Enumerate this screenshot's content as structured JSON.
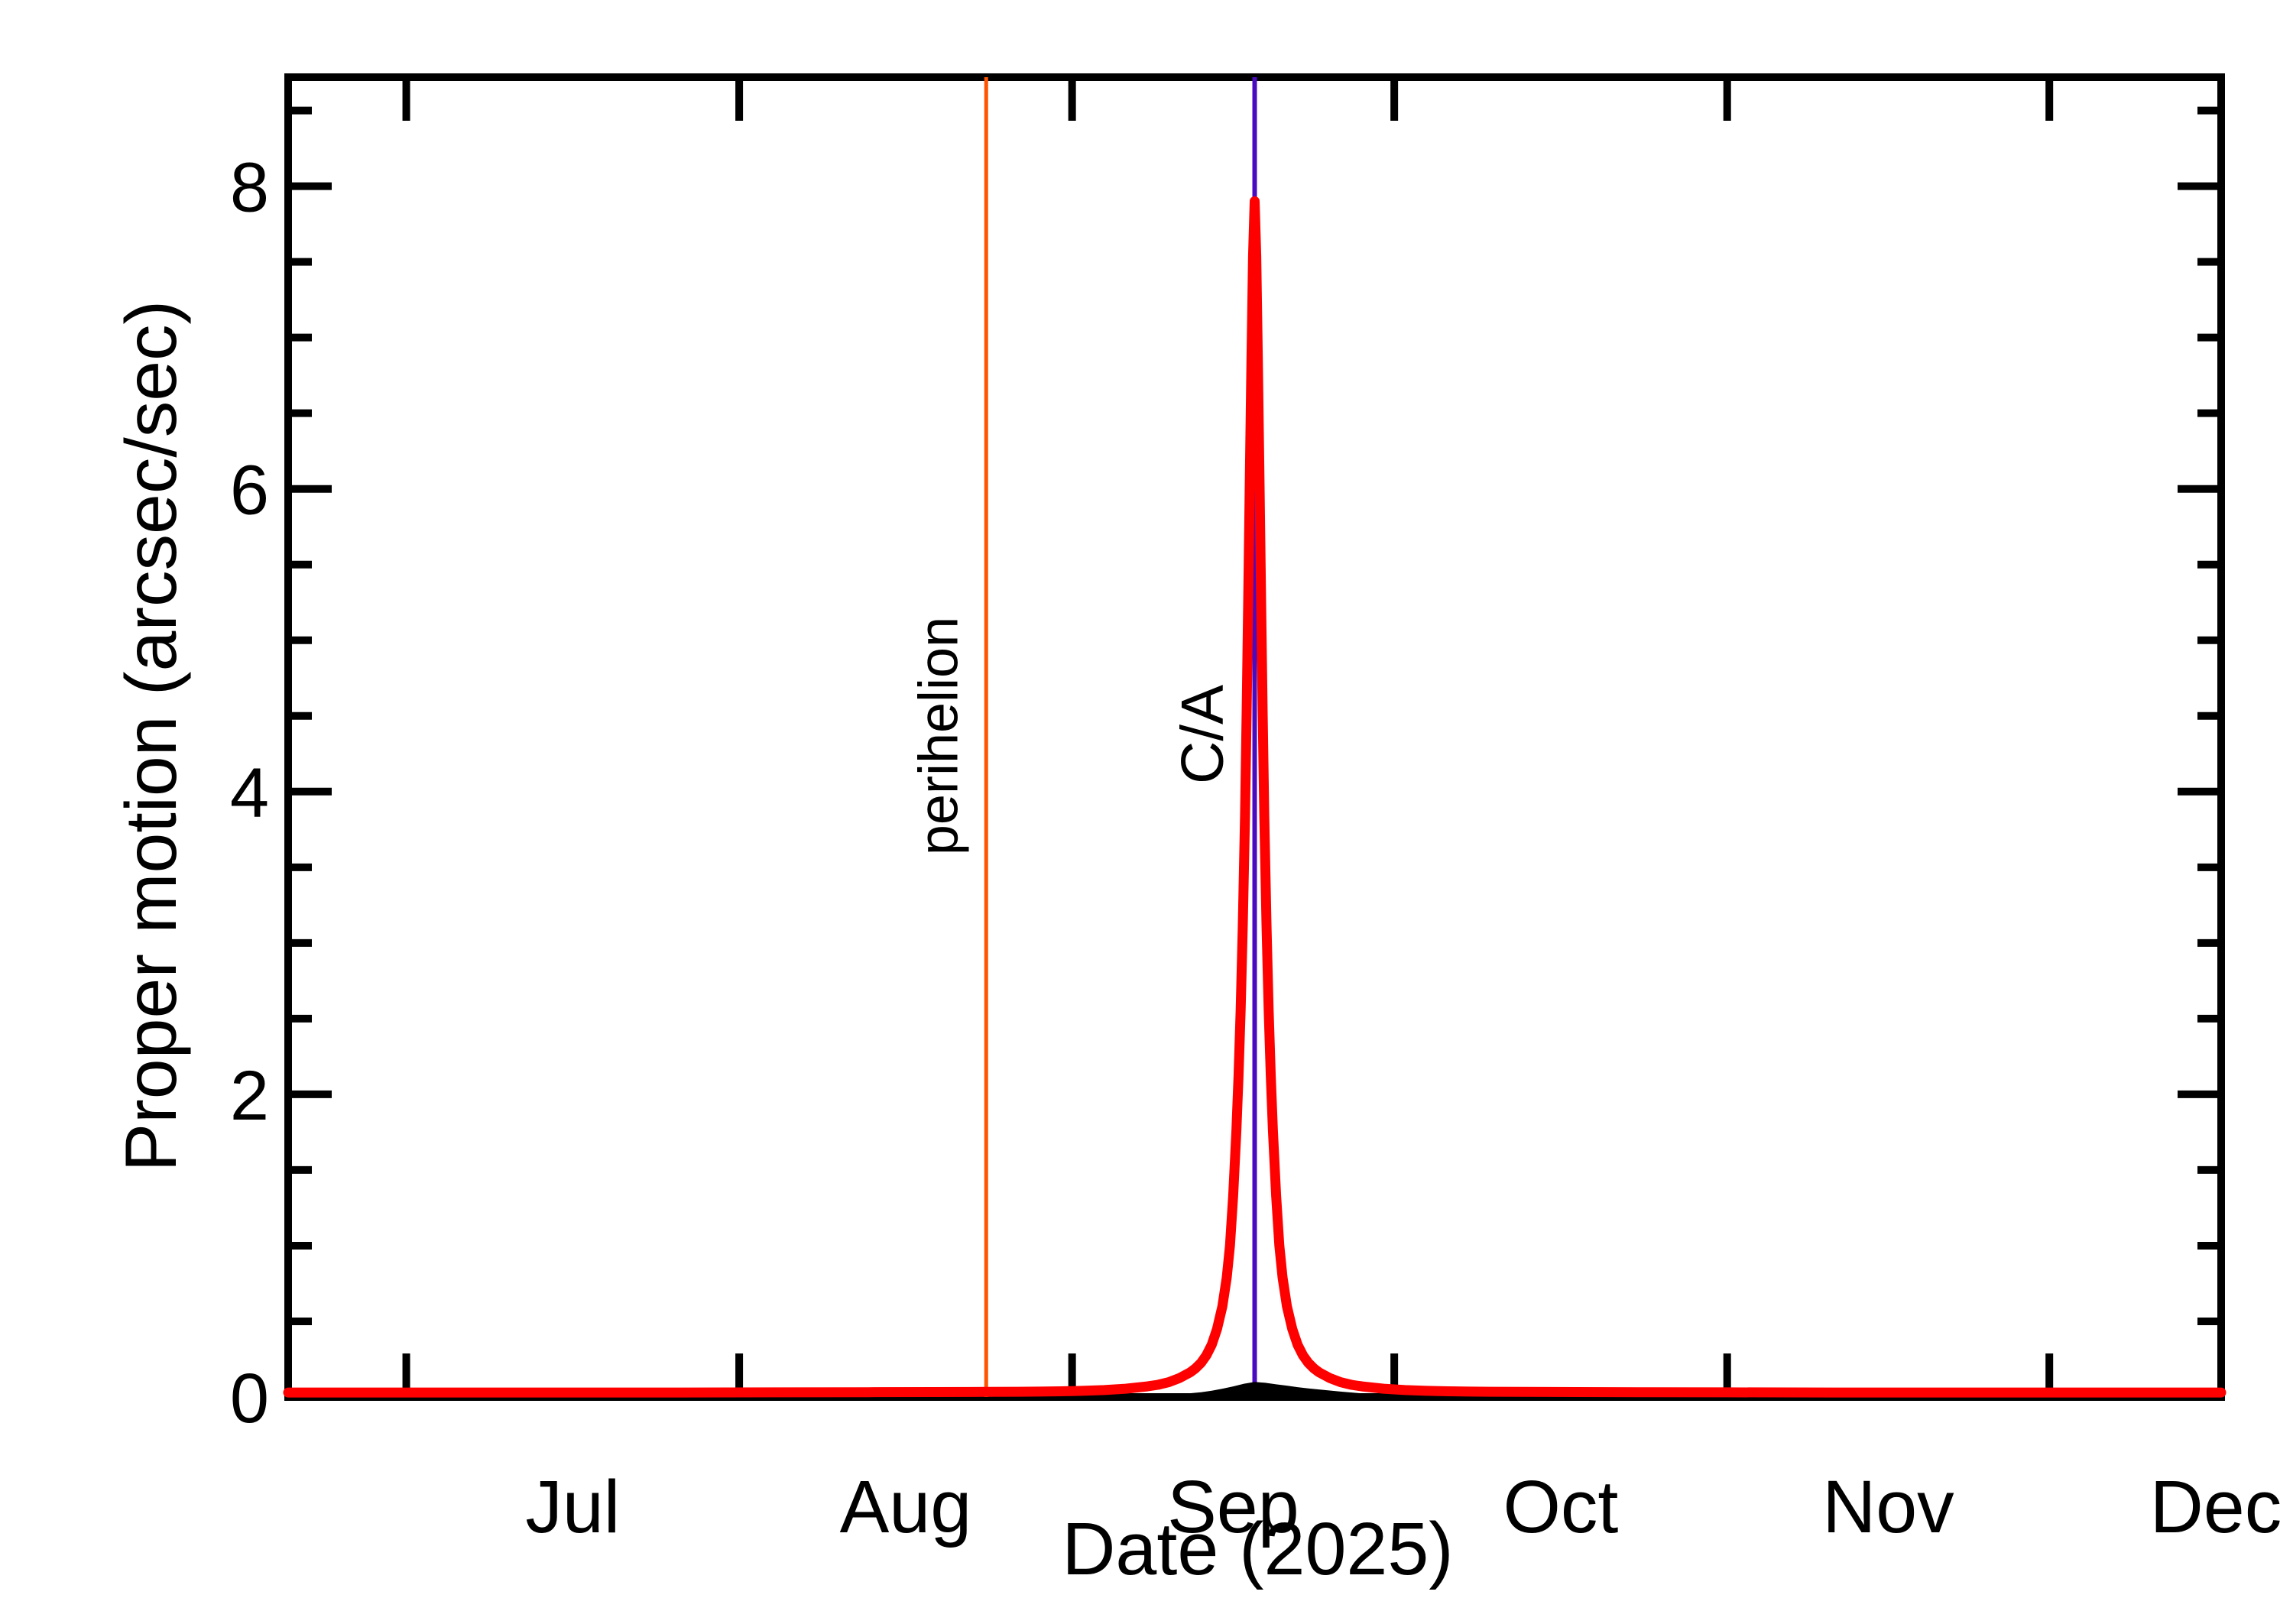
{
  "page": {
    "background": "#ffffff",
    "frame_color": "#000000"
  },
  "chart_data": {
    "type": "line",
    "title": "",
    "xlabel": "Date (2025)",
    "ylabel": "Proper motion (arcsec/sec)",
    "x_unit": "days from left edge of plot (left edge ≈ Jun 20, 2025; right edge ≈ Dec 16, 2025)",
    "x_range_days": [
      0,
      180
    ],
    "ylim": [
      0,
      8.72
    ],
    "y_tick_values": [
      0,
      2,
      4,
      6,
      8
    ],
    "y_tick_labels": [
      "0",
      "2",
      "4",
      "6",
      "8"
    ],
    "y_minor_step": 0.5,
    "grid": "off",
    "legend": "none",
    "months": [
      {
        "label": "Jul",
        "tick_day": 11,
        "label_day": 26.5
      },
      {
        "label": "Aug",
        "tick_day": 42,
        "label_day": 57.5
      },
      {
        "label": "Sep",
        "tick_day": 73,
        "label_day": 88
      },
      {
        "label": "Oct",
        "tick_day": 103,
        "label_day": 118.5
      },
      {
        "label": "Nov",
        "tick_day": 134,
        "label_day": 149
      },
      {
        "label": "Dec",
        "tick_day": 164,
        "label_day": 179.5
      }
    ],
    "events": [
      {
        "name": "perihelion",
        "label": "perihelion",
        "color": "#ff5500",
        "day": 65
      },
      {
        "name": "close-approach",
        "label": "C/A",
        "color": "#4a0ac0",
        "day": 90
      }
    ],
    "peak": {
      "day": 90,
      "value": 7.9
    },
    "series": [
      {
        "name": "proper-motion",
        "color": "#ff0000",
        "style": "line",
        "points": [
          [
            0,
            0.03
          ],
          [
            12,
            0.03
          ],
          [
            24,
            0.03
          ],
          [
            36,
            0.03
          ],
          [
            46,
            0.031
          ],
          [
            54,
            0.032
          ],
          [
            60,
            0.033
          ],
          [
            65,
            0.034
          ],
          [
            68,
            0.035
          ],
          [
            70,
            0.036
          ],
          [
            72,
            0.038
          ],
          [
            74,
            0.041
          ],
          [
            76,
            0.046
          ],
          [
            78,
            0.055
          ],
          [
            80,
            0.07
          ],
          [
            81,
            0.081
          ],
          [
            82,
            0.098
          ],
          [
            83,
            0.125
          ],
          [
            84,
            0.163
          ],
          [
            84.5,
            0.19
          ],
          [
            85,
            0.225
          ],
          [
            85.5,
            0.275
          ],
          [
            86,
            0.345
          ],
          [
            86.5,
            0.45
          ],
          [
            87,
            0.6
          ],
          [
            87.4,
            0.79
          ],
          [
            87.7,
            1.0
          ],
          [
            88,
            1.33
          ],
          [
            88.3,
            1.76
          ],
          [
            88.5,
            2.12
          ],
          [
            88.7,
            2.56
          ],
          [
            88.9,
            3.12
          ],
          [
            89.1,
            3.84
          ],
          [
            89.25,
            4.52
          ],
          [
            89.4,
            5.28
          ],
          [
            89.55,
            6.08
          ],
          [
            89.7,
            6.85
          ],
          [
            89.85,
            7.54
          ],
          [
            90,
            7.9
          ],
          [
            90.15,
            7.54
          ],
          [
            90.3,
            6.85
          ],
          [
            90.45,
            6.08
          ],
          [
            90.6,
            5.28
          ],
          [
            90.75,
            4.52
          ],
          [
            90.9,
            3.84
          ],
          [
            91.1,
            3.12
          ],
          [
            91.3,
            2.56
          ],
          [
            91.5,
            2.12
          ],
          [
            91.7,
            1.76
          ],
          [
            92,
            1.33
          ],
          [
            92.3,
            1.0
          ],
          [
            92.6,
            0.79
          ],
          [
            93,
            0.6
          ],
          [
            93.5,
            0.45
          ],
          [
            94,
            0.345
          ],
          [
            94.5,
            0.275
          ],
          [
            95,
            0.225
          ],
          [
            95.5,
            0.19
          ],
          [
            96,
            0.163
          ],
          [
            97,
            0.125
          ],
          [
            98,
            0.098
          ],
          [
            99,
            0.081
          ],
          [
            100,
            0.07
          ],
          [
            102,
            0.055
          ],
          [
            104,
            0.046
          ],
          [
            106,
            0.041
          ],
          [
            108,
            0.038
          ],
          [
            110,
            0.036
          ],
          [
            112,
            0.035
          ],
          [
            115,
            0.034
          ],
          [
            120,
            0.033
          ],
          [
            126,
            0.032
          ],
          [
            134,
            0.031
          ],
          [
            144,
            0.03
          ],
          [
            156,
            0.03
          ],
          [
            168,
            0.03
          ],
          [
            180,
            0.03
          ]
        ]
      },
      {
        "name": "baseline-shadow",
        "color": "#000000",
        "style": "area",
        "points": [
          [
            80,
            0
          ],
          [
            83,
            0.018
          ],
          [
            85,
            0.032
          ],
          [
            86,
            0.042
          ],
          [
            87,
            0.055
          ],
          [
            88,
            0.07
          ],
          [
            89,
            0.088
          ],
          [
            90,
            0.1
          ],
          [
            91,
            0.094
          ],
          [
            92,
            0.084
          ],
          [
            93,
            0.075
          ],
          [
            94,
            0.065
          ],
          [
            95,
            0.057
          ],
          [
            96,
            0.05
          ],
          [
            97,
            0.043
          ],
          [
            98,
            0.036
          ],
          [
            100,
            0.024
          ],
          [
            102,
            0.013
          ],
          [
            104,
            0
          ]
        ]
      }
    ]
  }
}
